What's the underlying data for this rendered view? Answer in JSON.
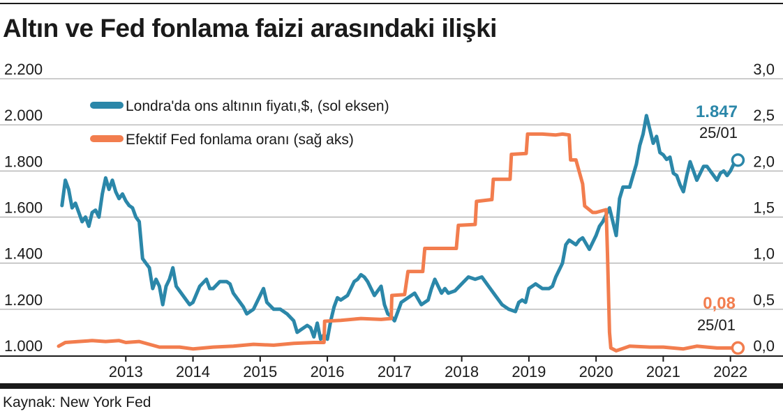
{
  "header": {
    "title": "Altın ve Fed fonlama faizi arasındaki ilişki"
  },
  "source": "Kaynak: New York Fed",
  "colors": {
    "gold": "#2b87a9",
    "fed": "#f27d4e",
    "grid": "#9a9a9a",
    "axis": "#1a1a1a"
  },
  "chart_data": {
    "type": "line",
    "xlim": [
      2012.0,
      2022.45
    ],
    "x_ticks": [
      2013,
      2014,
      2015,
      2016,
      2017,
      2018,
      2019,
      2020,
      2021,
      2022
    ],
    "x_tick_labels": [
      "2013",
      "2014",
      "2015",
      "2016",
      "2017",
      "2018",
      "2019",
      "2020",
      "2021",
      "2022"
    ],
    "left_axis": {
      "ylim": [
        1000,
        2200
      ],
      "ticks": [
        1000,
        1200,
        1400,
        1600,
        1800,
        2000,
        2200
      ],
      "tick_labels": [
        "1.000",
        "1.200",
        "1.400",
        "1.600",
        "1.800",
        "2.000",
        "2.200"
      ]
    },
    "right_axis": {
      "ylim": [
        0.0,
        3.0
      ],
      "ticks": [
        0.0,
        0.5,
        1.0,
        1.5,
        2.0,
        2.5,
        3.0
      ],
      "tick_labels": [
        "0,0",
        "0,5",
        "1,0",
        "1,5",
        "2,0",
        "2,5",
        "3,0"
      ]
    },
    "legend": {
      "position": "top-left"
    },
    "series": [
      {
        "name": "Londra'da ons altının fiyatı,$, (sol eksen)",
        "axis": "left",
        "end_label": "1.847",
        "end_date": "25/01",
        "x": [
          2012.05,
          2012.1,
          2012.15,
          2012.2,
          2012.25,
          2012.3,
          2012.35,
          2012.4,
          2012.45,
          2012.5,
          2012.55,
          2012.6,
          2012.65,
          2012.7,
          2012.75,
          2012.8,
          2012.85,
          2012.9,
          2012.95,
          2013.0,
          2013.05,
          2013.1,
          2013.15,
          2013.2,
          2013.25,
          2013.3,
          2013.35,
          2013.4,
          2013.45,
          2013.5,
          2013.55,
          2013.6,
          2013.65,
          2013.7,
          2013.75,
          2013.8,
          2013.85,
          2013.9,
          2013.95,
          2014.0,
          2014.1,
          2014.2,
          2014.25,
          2014.3,
          2014.4,
          2014.5,
          2014.55,
          2014.6,
          2014.7,
          2014.75,
          2014.8,
          2014.9,
          2015.0,
          2015.05,
          2015.1,
          2015.2,
          2015.3,
          2015.4,
          2015.5,
          2015.55,
          2015.6,
          2015.7,
          2015.75,
          2015.8,
          2015.85,
          2015.9,
          2015.95,
          2016.0,
          2016.05,
          2016.1,
          2016.15,
          2016.2,
          2016.3,
          2016.4,
          2016.45,
          2016.5,
          2016.55,
          2016.6,
          2016.7,
          2016.8,
          2016.85,
          2016.9,
          2016.95,
          2017.0,
          2017.1,
          2017.2,
          2017.3,
          2017.4,
          2017.5,
          2017.55,
          2017.6,
          2017.7,
          2017.75,
          2017.8,
          2017.9,
          2018.0,
          2018.1,
          2018.2,
          2018.3,
          2018.4,
          2018.5,
          2018.6,
          2018.65,
          2018.7,
          2018.8,
          2018.85,
          2018.9,
          2018.95,
          2019.0,
          2019.1,
          2019.2,
          2019.3,
          2019.35,
          2019.4,
          2019.5,
          2019.55,
          2019.6,
          2019.7,
          2019.75,
          2019.8,
          2019.9,
          2020.0,
          2020.05,
          2020.1,
          2020.15,
          2020.2,
          2020.25,
          2020.3,
          2020.35,
          2020.4,
          2020.5,
          2020.55,
          2020.6,
          2020.65,
          2020.7,
          2020.75,
          2020.8,
          2020.85,
          2020.9,
          2020.95,
          2021.0,
          2021.05,
          2021.1,
          2021.15,
          2021.2,
          2021.25,
          2021.3,
          2021.35,
          2021.4,
          2021.45,
          2021.5,
          2021.55,
          2021.6,
          2021.65,
          2021.7,
          2021.75,
          2021.8,
          2021.85,
          2021.9,
          2021.95,
          2022.0,
          2022.05,
          2022.07
        ],
        "y": [
          1650,
          1760,
          1720,
          1640,
          1660,
          1620,
          1580,
          1600,
          1560,
          1620,
          1630,
          1600,
          1700,
          1770,
          1720,
          1760,
          1710,
          1680,
          1700,
          1670,
          1650,
          1640,
          1600,
          1580,
          1420,
          1400,
          1380,
          1290,
          1330,
          1300,
          1220,
          1300,
          1330,
          1380,
          1300,
          1280,
          1260,
          1240,
          1220,
          1230,
          1300,
          1330,
          1290,
          1290,
          1320,
          1320,
          1310,
          1270,
          1230,
          1210,
          1180,
          1200,
          1260,
          1290,
          1230,
          1200,
          1200,
          1180,
          1150,
          1100,
          1110,
          1130,
          1120,
          1080,
          1140,
          1070,
          1090,
          1070,
          1150,
          1210,
          1250,
          1240,
          1260,
          1320,
          1330,
          1350,
          1340,
          1320,
          1260,
          1300,
          1220,
          1180,
          1170,
          1150,
          1230,
          1250,
          1270,
          1220,
          1240,
          1290,
          1330,
          1270,
          1290,
          1270,
          1280,
          1310,
          1340,
          1330,
          1340,
          1300,
          1260,
          1220,
          1210,
          1200,
          1190,
          1230,
          1240,
          1230,
          1290,
          1310,
          1290,
          1290,
          1300,
          1340,
          1400,
          1480,
          1500,
          1480,
          1500,
          1510,
          1460,
          1520,
          1560,
          1580,
          1610,
          1640,
          1580,
          1520,
          1680,
          1730,
          1730,
          1780,
          1830,
          1910,
          1960,
          2040,
          1980,
          1920,
          1950,
          1880,
          1870,
          1850,
          1860,
          1790,
          1780,
          1740,
          1710,
          1780,
          1840,
          1800,
          1760,
          1790,
          1820,
          1820,
          1800,
          1780,
          1760,
          1790,
          1800,
          1780,
          1800,
          1830,
          1847
        ]
      },
      {
        "name": "Efektif Fed fonlama oranı (sağ aks)",
        "axis": "right",
        "end_label": "0,08",
        "end_date": "25/01",
        "x": [
          2012.0,
          2012.1,
          2012.3,
          2012.5,
          2012.7,
          2012.9,
          2013.0,
          2013.2,
          2013.5,
          2013.8,
          2014.0,
          2014.3,
          2014.6,
          2014.9,
          2015.2,
          2015.5,
          2015.8,
          2015.95,
          2015.96,
          2016.2,
          2016.5,
          2016.8,
          2016.95,
          2016.96,
          2017.15,
          2017.2,
          2017.42,
          2017.45,
          2017.92,
          2017.95,
          2018.2,
          2018.22,
          2018.45,
          2018.47,
          2018.72,
          2018.74,
          2018.96,
          2018.98,
          2019.2,
          2019.4,
          2019.5,
          2019.6,
          2019.62,
          2019.7,
          2019.8,
          2019.83,
          2019.95,
          2020.0,
          2020.15,
          2020.17,
          2020.2,
          2020.22,
          2020.3,
          2020.5,
          2020.8,
          2021.0,
          2021.3,
          2021.5,
          2021.8,
          2022.0,
          2022.07
        ],
        "y": [
          0.1,
          0.14,
          0.15,
          0.16,
          0.15,
          0.16,
          0.14,
          0.15,
          0.09,
          0.09,
          0.07,
          0.09,
          0.1,
          0.12,
          0.11,
          0.13,
          0.14,
          0.14,
          0.37,
          0.38,
          0.4,
          0.39,
          0.4,
          0.65,
          0.66,
          0.91,
          0.91,
          1.16,
          1.16,
          1.41,
          1.42,
          1.67,
          1.69,
          1.91,
          1.91,
          2.18,
          2.19,
          2.4,
          2.4,
          2.39,
          2.4,
          2.39,
          2.12,
          2.12,
          1.86,
          1.62,
          1.55,
          1.55,
          1.58,
          1.1,
          0.25,
          0.08,
          0.05,
          0.1,
          0.09,
          0.09,
          0.07,
          0.1,
          0.08,
          0.08,
          0.08
        ]
      }
    ]
  }
}
